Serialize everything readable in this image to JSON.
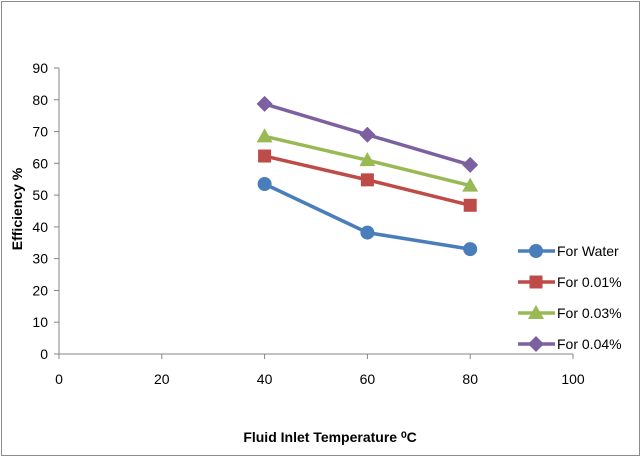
{
  "chart_data": {
    "type": "line",
    "title": "",
    "xlabel": "Fluid Inlet Temperature ⁰C",
    "ylabel": "Efficiency %",
    "xlim": [
      0,
      100
    ],
    "ylim": [
      0,
      90
    ],
    "x_ticks": [
      0,
      20,
      40,
      60,
      80,
      100
    ],
    "y_ticks": [
      0,
      10,
      20,
      30,
      40,
      50,
      60,
      70,
      80,
      90
    ],
    "grid": false,
    "legend_position": "right",
    "x": [
      40,
      60,
      80
    ],
    "series": [
      {
        "name": "For Water",
        "values": [
          53.5,
          38.2,
          33.0
        ],
        "color": "#4a7ebb",
        "marker": "circle"
      },
      {
        "name": "For 0.01%",
        "values": [
          62.3,
          54.8,
          46.8
        ],
        "color": "#be4b48",
        "marker": "square"
      },
      {
        "name": "For 0.03%",
        "values": [
          68.5,
          61.0,
          53.0
        ],
        "color": "#98b954",
        "marker": "triangle"
      },
      {
        "name": "For 0.04%",
        "values": [
          78.7,
          69.0,
          59.5
        ],
        "color": "#7d60a0",
        "marker": "diamond"
      }
    ]
  }
}
